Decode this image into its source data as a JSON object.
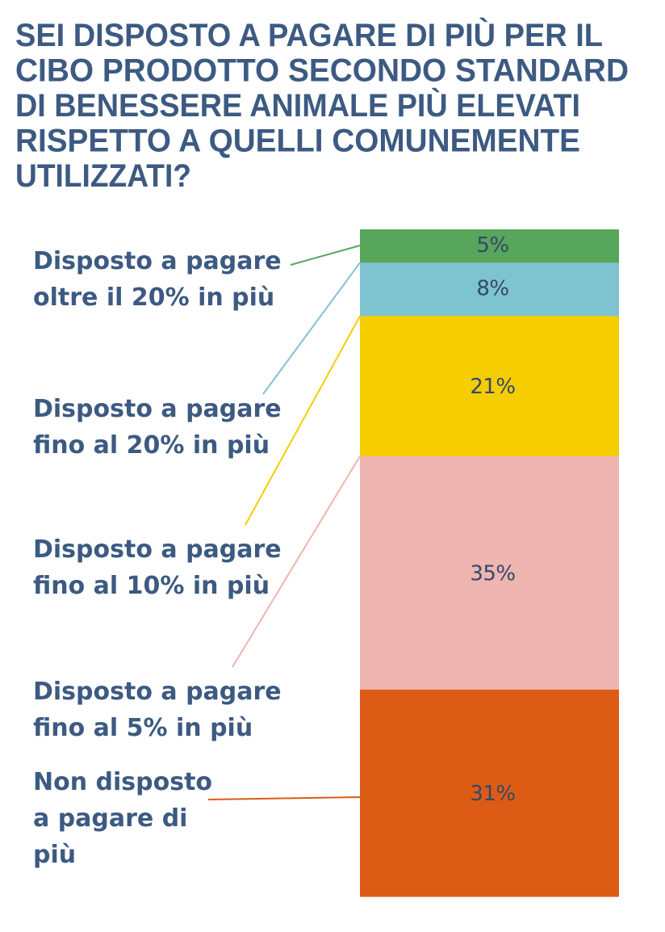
{
  "colors": {
    "title": "#3c5a82",
    "labels": "#3c5a82",
    "value_text": "#33486a"
  },
  "chart_data": {
    "type": "bar",
    "stacked": true,
    "title": "SEI DISPOSTO A PAGARE DI PIÙ PER IL CIBO PRODOTTO SECONDO STANDARD DI BENESSERE ANIMALE PIÙ ELEVATI RISPETTO A QUELLI COMUNEMENTE UTILIZZATI?",
    "title_lines": [
      "SEI DISPOSTO A PAGARE DI PIÙ PER IL",
      "CIBO PRODOTTO SECONDO STANDARD",
      "DI BENESSERE ANIMALE PIÙ ELEVATI",
      "RISPETTO A QUELLI COMUNEMENTE",
      "UTILIZZATI?"
    ],
    "ylim": [
      0,
      100
    ],
    "unit": "%",
    "segments": [
      {
        "name": "Disposto a pagare oltre il 20% in più",
        "label_lines": [
          "Disposto a pagare",
          "oltre il 20% in più"
        ],
        "value": 5,
        "value_label": "5%",
        "color": "#58a55c"
      },
      {
        "name": "Disposto a pagare fino al 20% in più",
        "label_lines": [
          "Disposto a pagare",
          "fino al 20% in più"
        ],
        "value": 8,
        "value_label": "8%",
        "color": "#7ec3d0"
      },
      {
        "name": "Disposto a pagare fino al 10% in più",
        "label_lines": [
          "Disposto a pagare",
          "fino al 10% in più"
        ],
        "value": 21,
        "value_label": "21%",
        "color": "#f5cd00"
      },
      {
        "name": "Disposto a pagare fino al 5% in più",
        "label_lines": [
          "Disposto a pagare",
          "fino al 5% in più"
        ],
        "value": 35,
        "value_label": "35%",
        "color": "#efb5b0"
      },
      {
        "name": "Non disposto a pagare di più",
        "label_lines": [
          "Non disposto",
          "a pagare di",
          "più"
        ],
        "value": 31,
        "value_label": "31%",
        "color": "#dc5c16"
      }
    ]
  }
}
